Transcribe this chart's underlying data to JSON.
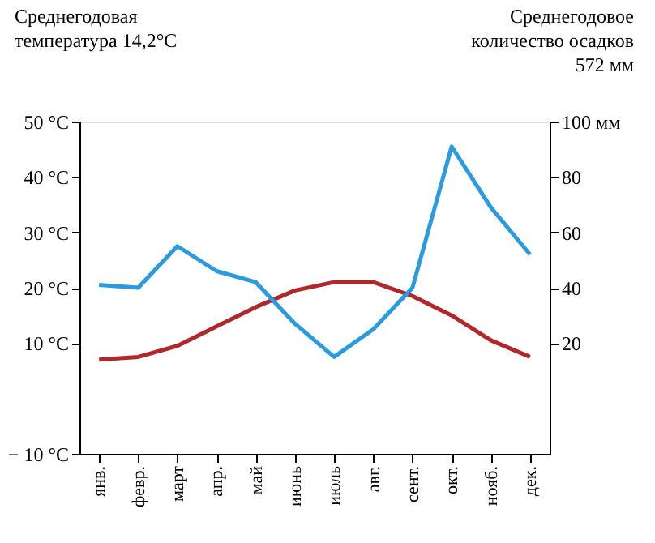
{
  "chart_data": {
    "type": "line",
    "annotations": [
      "Среднегодовая\nтемпература 14,2°C",
      "Среднегодовое\nколичество осадков\n572 мм"
    ],
    "categories": [
      "янв.",
      "февр.",
      "март",
      "апр.",
      "май",
      "июнь",
      "июль",
      "авг.",
      "сент.",
      "окт.",
      "нояб.",
      "дек."
    ],
    "series": [
      {
        "color": "#b0282a",
        "values": [
          7,
          7.5,
          9.5,
          13,
          16.5,
          19.5,
          21,
          21,
          18.5,
          15,
          10.5,
          7.5
        ]
      },
      {
        "color": "#2b9be0",
        "axis": "y2",
        "values": [
          41,
          40,
          55,
          46,
          42,
          27,
          15,
          25,
          40,
          91,
          69,
          52
        ]
      }
    ],
    "ylim": [
      -10,
      50
    ],
    "yticks": [
      {
        "value": -10,
        "label": "− 10 °C"
      },
      {
        "value": 10,
        "label": "10 °C"
      },
      {
        "value": 20,
        "label": "20 °C"
      },
      {
        "value": 30,
        "label": "30 °C"
      },
      {
        "value": 40,
        "label": "40 °C"
      },
      {
        "value": 50,
        "label": "50 °C"
      }
    ],
    "y2lim": [
      -20,
      100
    ],
    "y2ticks": [
      20,
      40,
      60,
      80,
      {
        "value": 100,
        "label": "100 мм"
      }
    ],
    "grid": false,
    "marker": "none",
    "line_style": "solid"
  }
}
